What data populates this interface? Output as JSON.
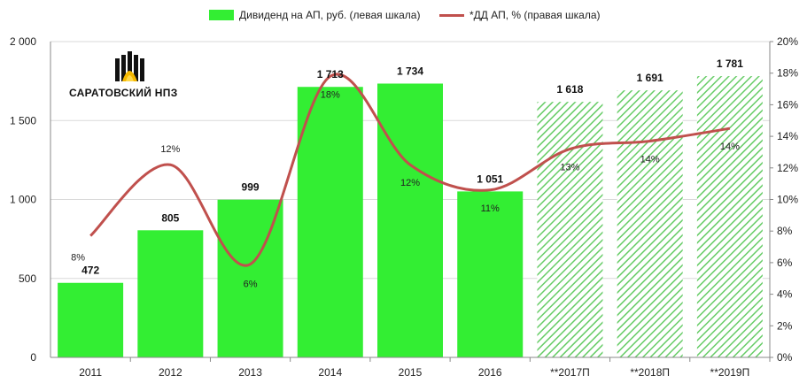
{
  "legend": {
    "bar_label": "Дивиденд  на АП, руб. (левая шкала)",
    "line_label": "*ДД АП, % (правая шкала)"
  },
  "logo": {
    "text": "САРАТОВСКИЙ НПЗ"
  },
  "colors": {
    "bar": "#33ee33",
    "bar_forecast_stripe": "#66cc66",
    "line": "#c0504d",
    "grid": "#d9d9d9",
    "axis": "#888888"
  },
  "chart_data": {
    "type": "bar",
    "categories": [
      "2011",
      "2012",
      "2013",
      "2014",
      "2015",
      "2016",
      "**2017П",
      "**2018П",
      "**2019П"
    ],
    "forecast_from_index": 6,
    "series": [
      {
        "name": "Дивиденд  на АП, руб. (левая шкала)",
        "axis": "left",
        "type": "bar",
        "values": [
          472,
          805,
          999,
          1713,
          1734,
          1051,
          1618,
          1691,
          1781
        ],
        "labels": [
          "472",
          "805",
          "999",
          "1 713",
          "1 734",
          "1 051",
          "1 618",
          "1 691",
          "1 781"
        ]
      },
      {
        "name": "*ДД АП, % (правая шкала)",
        "axis": "right",
        "type": "line",
        "values": [
          7.7,
          12.2,
          5.9,
          17.8,
          12.2,
          10.6,
          13.2,
          13.7,
          14.5
        ],
        "labels": [
          "8%",
          "12%",
          "6%",
          "18%",
          "12%",
          "11%",
          "13%",
          "14%",
          "14%"
        ]
      }
    ],
    "y_left": {
      "min": 0,
      "max": 2000,
      "ticks": [
        0,
        500,
        1000,
        1500,
        2000
      ],
      "tick_labels": [
        "0",
        "500",
        "1 000",
        "1 500",
        "2 000"
      ]
    },
    "y_right": {
      "min": 0,
      "max": 20,
      "ticks": [
        0,
        2,
        4,
        6,
        8,
        10,
        12,
        14,
        16,
        18,
        20
      ],
      "tick_labels": [
        "0%",
        "2%",
        "4%",
        "6%",
        "8%",
        "10%",
        "12%",
        "14%",
        "16%",
        "18%",
        "20%"
      ]
    },
    "grid": true,
    "legend_position": "top"
  }
}
